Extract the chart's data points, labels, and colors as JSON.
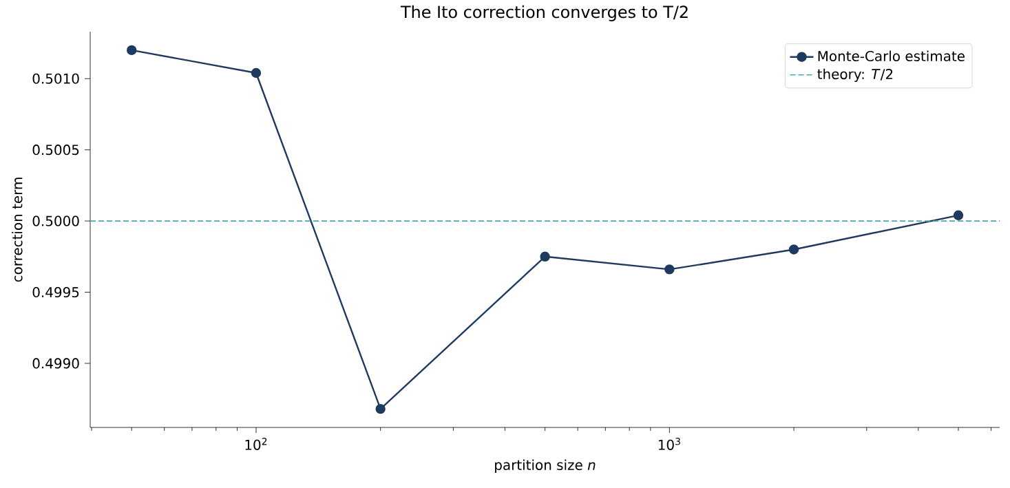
{
  "chart_data": {
    "type": "line",
    "title": "The Ito correction converges to T/2",
    "xlabel": "partition size *n*",
    "ylabel": "correction term",
    "x": [
      50,
      100,
      200,
      500,
      1000,
      2000,
      5000
    ],
    "series": [
      {
        "name": "Monte-Carlo estimate",
        "color": "#1f3a5f",
        "values": [
          0.5012,
          0.50104,
          0.49868,
          0.49975,
          0.49966,
          0.4998,
          0.50004
        ]
      }
    ],
    "log": "x",
    "marker": "circle",
    "line_style": "solid",
    "legend": "top right",
    "xlim": [
      39.7,
      6295
    ],
    "ylim": [
      0.49855,
      0.50133
    ],
    "xticks": [
      {
        "value": 40,
        "label": null
      },
      {
        "value": 50,
        "label": null
      },
      {
        "value": 60,
        "label": null
      },
      {
        "value": 70,
        "label": null
      },
      {
        "value": 80,
        "label": null
      },
      {
        "value": 90,
        "label": null
      },
      {
        "value": 100,
        "label": "10$^{2}$"
      },
      {
        "value": 200,
        "label": null
      },
      {
        "value": 300,
        "label": null
      },
      {
        "value": 400,
        "label": null
      },
      {
        "value": 500,
        "label": null
      },
      {
        "value": 600,
        "label": null
      },
      {
        "value": 700,
        "label": null
      },
      {
        "value": 800,
        "label": null
      },
      {
        "value": 900,
        "label": null
      },
      {
        "value": 1000,
        "label": "10$^{3}$"
      },
      {
        "value": 2000,
        "label": null
      },
      {
        "value": 3000,
        "label": null
      },
      {
        "value": 4000,
        "label": null
      },
      {
        "value": 5000,
        "label": null
      },
      {
        "value": 6000,
        "label": null
      }
    ],
    "yticks": [
      {
        "value": 0.499,
        "label": "0.4990"
      },
      {
        "value": 0.4995,
        "label": "0.4995"
      },
      {
        "value": 0.5,
        "label": "0.5000"
      },
      {
        "value": 0.5005,
        "label": "0.5005"
      },
      {
        "value": 0.501,
        "label": "0.5010"
      }
    ],
    "ref_lines": [
      {
        "axis": "y",
        "value": 0.5,
        "label": "theory: *T*/2",
        "color": "#4aa8a8",
        "line_style": "dashed"
      }
    ]
  }
}
